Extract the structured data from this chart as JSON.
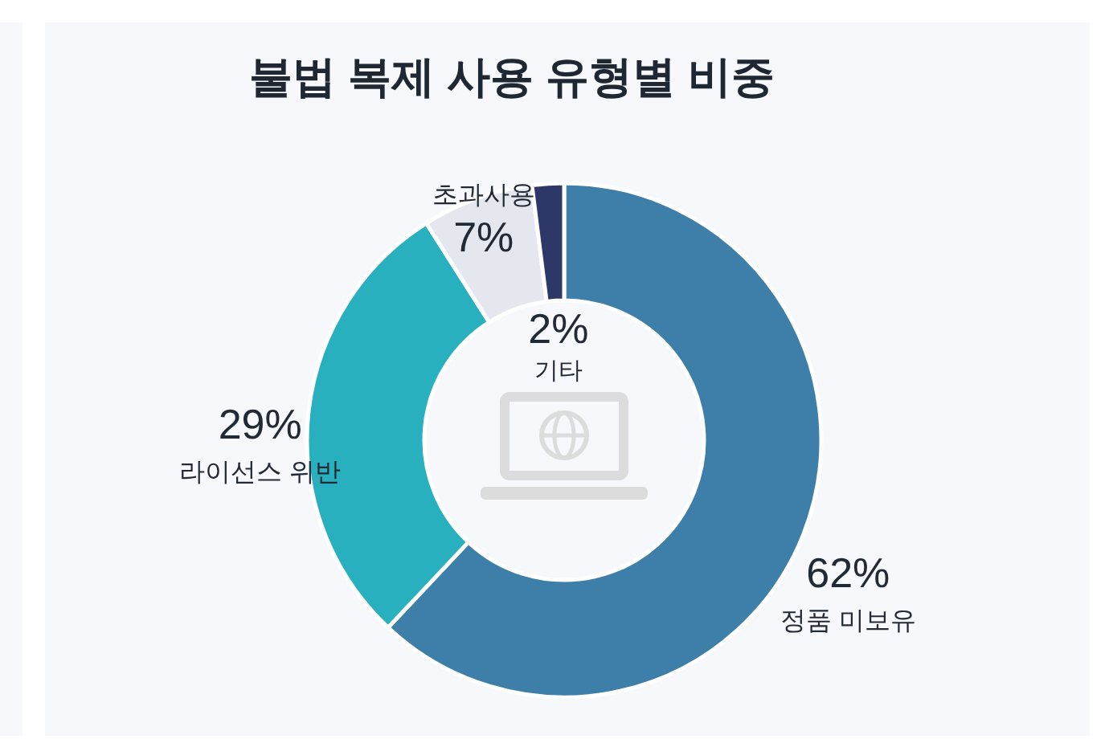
{
  "chart_data": {
    "type": "donut",
    "title": "불법 복제 사용 유형별 비중",
    "categories": [
      "정품 미보유",
      "라이선스 위반",
      "초과사용",
      "기타"
    ],
    "values": [
      62,
      29,
      7,
      2
    ],
    "colors": [
      "#3d7fa8",
      "#28b0bf",
      "#e4e8ee",
      "#2e3868"
    ],
    "value_labels": [
      "62%",
      "29%",
      "7%",
      "2%"
    ]
  }
}
